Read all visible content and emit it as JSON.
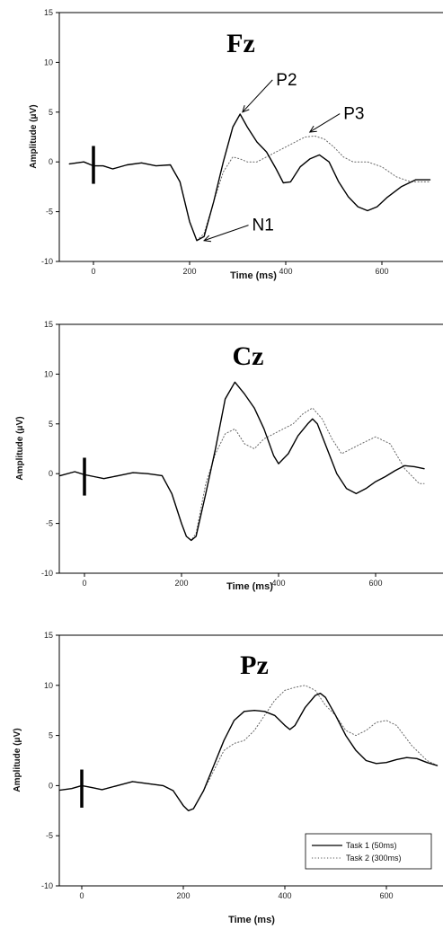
{
  "chart_data": [
    {
      "type": "line",
      "title": "Fz",
      "xlabel": "Time (ms)",
      "ylabel": "Amplitude (μV)",
      "xlim": [
        -50,
        700
      ],
      "ylim": [
        -10,
        15
      ],
      "xticks": [
        0,
        200,
        400,
        600
      ],
      "yticks": [
        -10,
        -5,
        0,
        5,
        10,
        15
      ],
      "stimulus_marker_x": 0,
      "series": [
        {
          "name": "Task 1 (50ms)",
          "style": "solid",
          "points": [
            [
              -50,
              -0.2
            ],
            [
              -20,
              0
            ],
            [
              0,
              -0.4
            ],
            [
              20,
              -0.4
            ],
            [
              40,
              -0.7
            ],
            [
              70,
              -0.3
            ],
            [
              100,
              -0.1
            ],
            [
              130,
              -0.4
            ],
            [
              160,
              -0.3
            ],
            [
              180,
              -2
            ],
            [
              200,
              -6
            ],
            [
              215,
              -7.9
            ],
            [
              230,
              -7.5
            ],
            [
              250,
              -4
            ],
            [
              270,
              0
            ],
            [
              290,
              3.5
            ],
            [
              305,
              4.8
            ],
            [
              320,
              3.5
            ],
            [
              340,
              2
            ],
            [
              360,
              1
            ],
            [
              380,
              -0.7
            ],
            [
              395,
              -2.1
            ],
            [
              410,
              -2
            ],
            [
              430,
              -0.5
            ],
            [
              450,
              0.3
            ],
            [
              470,
              0.7
            ],
            [
              490,
              0
            ],
            [
              510,
              -2
            ],
            [
              530,
              -3.5
            ],
            [
              550,
              -4.5
            ],
            [
              570,
              -4.9
            ],
            [
              590,
              -4.5
            ],
            [
              610,
              -3.6
            ],
            [
              640,
              -2.5
            ],
            [
              670,
              -1.8
            ],
            [
              700,
              -1.8
            ]
          ]
        },
        {
          "name": "Task 2 (300ms)",
          "style": "dotted",
          "points": [
            [
              -50,
              -0.2
            ],
            [
              -20,
              0
            ],
            [
              0,
              -0.4
            ],
            [
              20,
              -0.4
            ],
            [
              40,
              -0.7
            ],
            [
              70,
              -0.3
            ],
            [
              100,
              -0.1
            ],
            [
              130,
              -0.4
            ],
            [
              160,
              -0.3
            ],
            [
              180,
              -2
            ],
            [
              200,
              -6
            ],
            [
              215,
              -7.9
            ],
            [
              230,
              -7.2
            ],
            [
              250,
              -4
            ],
            [
              270,
              -1
            ],
            [
              290,
              0.5
            ],
            [
              305,
              0.3
            ],
            [
              320,
              0
            ],
            [
              340,
              0
            ],
            [
              360,
              0.5
            ],
            [
              380,
              1
            ],
            [
              400,
              1.5
            ],
            [
              420,
              2
            ],
            [
              440,
              2.5
            ],
            [
              460,
              2.6
            ],
            [
              480,
              2.3
            ],
            [
              500,
              1.5
            ],
            [
              520,
              0.5
            ],
            [
              540,
              0
            ],
            [
              570,
              0
            ],
            [
              600,
              -0.5
            ],
            [
              630,
              -1.5
            ],
            [
              660,
              -2
            ],
            [
              700,
              -2
            ]
          ]
        }
      ],
      "annotations": [
        {
          "text": "P2",
          "x": 380,
          "y": 7.7,
          "arrow_to": [
            310,
            5
          ]
        },
        {
          "text": "P3",
          "x": 520,
          "y": 4.3,
          "arrow_to": [
            450,
            3
          ]
        },
        {
          "text": "N1",
          "x": 330,
          "y": -6.9,
          "arrow_to": [
            230,
            -7.9
          ]
        }
      ]
    },
    {
      "type": "line",
      "title": "Cz",
      "xlabel": "Time (ms)",
      "ylabel": "Amplitude (μV)",
      "xlim": [
        -50,
        700
      ],
      "ylim": [
        -10,
        15
      ],
      "xticks": [
        0,
        200,
        400,
        600
      ],
      "yticks": [
        -10,
        -5,
        0,
        5,
        10,
        15
      ],
      "stimulus_marker_x": 0,
      "series": [
        {
          "name": "Task 1 (50ms)",
          "style": "solid",
          "points": [
            [
              -50,
              -0.2
            ],
            [
              -20,
              0.2
            ],
            [
              0,
              -0.1
            ],
            [
              20,
              -0.3
            ],
            [
              40,
              -0.5
            ],
            [
              70,
              -0.2
            ],
            [
              100,
              0.1
            ],
            [
              130,
              0
            ],
            [
              160,
              -0.2
            ],
            [
              180,
              -2
            ],
            [
              200,
              -5
            ],
            [
              210,
              -6.3
            ],
            [
              220,
              -6.7
            ],
            [
              230,
              -6.3
            ],
            [
              250,
              -2
            ],
            [
              270,
              2.5
            ],
            [
              290,
              7.5
            ],
            [
              310,
              9.2
            ],
            [
              330,
              8
            ],
            [
              350,
              6.6
            ],
            [
              370,
              4.5
            ],
            [
              390,
              1.8
            ],
            [
              400,
              1
            ],
            [
              420,
              2
            ],
            [
              440,
              3.8
            ],
            [
              460,
              5
            ],
            [
              470,
              5.5
            ],
            [
              480,
              5
            ],
            [
              500,
              2.5
            ],
            [
              520,
              0
            ],
            [
              540,
              -1.5
            ],
            [
              560,
              -2
            ],
            [
              580,
              -1.5
            ],
            [
              600,
              -0.8
            ],
            [
              620,
              -0.3
            ],
            [
              640,
              0.3
            ],
            [
              660,
              0.8
            ],
            [
              680,
              0.7
            ],
            [
              700,
              0.5
            ]
          ]
        },
        {
          "name": "Task 2 (300ms)",
          "style": "dotted",
          "points": [
            [
              -50,
              -0.2
            ],
            [
              -20,
              0.2
            ],
            [
              0,
              -0.1
            ],
            [
              20,
              -0.3
            ],
            [
              40,
              -0.5
            ],
            [
              70,
              -0.2
            ],
            [
              100,
              0.1
            ],
            [
              130,
              0
            ],
            [
              160,
              -0.2
            ],
            [
              180,
              -2
            ],
            [
              200,
              -5
            ],
            [
              210,
              -6.3
            ],
            [
              220,
              -6.7
            ],
            [
              230,
              -6
            ],
            [
              250,
              -1
            ],
            [
              270,
              2
            ],
            [
              290,
              4
            ],
            [
              310,
              4.5
            ],
            [
              330,
              3
            ],
            [
              350,
              2.5
            ],
            [
              370,
              3.5
            ],
            [
              390,
              4
            ],
            [
              410,
              4.5
            ],
            [
              430,
              5
            ],
            [
              450,
              6
            ],
            [
              470,
              6.6
            ],
            [
              490,
              5.5
            ],
            [
              510,
              3.5
            ],
            [
              530,
              2
            ],
            [
              550,
              2.5
            ],
            [
              570,
              3
            ],
            [
              600,
              3.7
            ],
            [
              630,
              3
            ],
            [
              660,
              0.5
            ],
            [
              690,
              -1
            ],
            [
              700,
              -1
            ]
          ]
        }
      ],
      "annotations": []
    },
    {
      "type": "line",
      "title": "Pz",
      "xlabel": "Time (ms)",
      "ylabel": "Amplitude (μV)",
      "xlim": [
        -50,
        700
      ],
      "ylim": [
        -10,
        15
      ],
      "xticks": [
        0,
        200,
        400,
        600
      ],
      "yticks": [
        -10,
        -5,
        0,
        5,
        10,
        15
      ],
      "stimulus_marker_x": 0,
      "series": [
        {
          "name": "Task 1 (50ms)",
          "style": "solid",
          "points": [
            [
              -50,
              -0.5
            ],
            [
              -20,
              -0.3
            ],
            [
              0,
              0
            ],
            [
              20,
              -0.2
            ],
            [
              40,
              -0.4
            ],
            [
              70,
              0
            ],
            [
              100,
              0.4
            ],
            [
              130,
              0.2
            ],
            [
              160,
              0
            ],
            [
              180,
              -0.5
            ],
            [
              200,
              -2
            ],
            [
              210,
              -2.5
            ],
            [
              220,
              -2.3
            ],
            [
              240,
              -0.5
            ],
            [
              260,
              2
            ],
            [
              280,
              4.5
            ],
            [
              300,
              6.5
            ],
            [
              320,
              7.4
            ],
            [
              340,
              7.5
            ],
            [
              360,
              7.4
            ],
            [
              380,
              7
            ],
            [
              400,
              6
            ],
            [
              410,
              5.6
            ],
            [
              420,
              6
            ],
            [
              440,
              7.8
            ],
            [
              460,
              9
            ],
            [
              470,
              9.2
            ],
            [
              480,
              8.8
            ],
            [
              500,
              7
            ],
            [
              520,
              5
            ],
            [
              540,
              3.5
            ],
            [
              560,
              2.5
            ],
            [
              580,
              2.2
            ],
            [
              600,
              2.3
            ],
            [
              620,
              2.6
            ],
            [
              640,
              2.8
            ],
            [
              660,
              2.7
            ],
            [
              680,
              2.3
            ],
            [
              700,
              2
            ]
          ]
        },
        {
          "name": "Task 2 (300ms)",
          "style": "dotted",
          "points": [
            [
              -50,
              -0.5
            ],
            [
              -20,
              -0.3
            ],
            [
              0,
              0
            ],
            [
              20,
              -0.2
            ],
            [
              40,
              -0.4
            ],
            [
              70,
              0
            ],
            [
              100,
              0.4
            ],
            [
              130,
              0.2
            ],
            [
              160,
              0
            ],
            [
              180,
              -0.5
            ],
            [
              200,
              -2
            ],
            [
              210,
              -2.5
            ],
            [
              220,
              -2.3
            ],
            [
              240,
              -0.5
            ],
            [
              260,
              1.5
            ],
            [
              280,
              3.5
            ],
            [
              300,
              4.2
            ],
            [
              320,
              4.5
            ],
            [
              340,
              5.5
            ],
            [
              360,
              7
            ],
            [
              380,
              8.5
            ],
            [
              400,
              9.5
            ],
            [
              420,
              9.8
            ],
            [
              440,
              10
            ],
            [
              460,
              9.5
            ],
            [
              480,
              8
            ],
            [
              500,
              7
            ],
            [
              520,
              5.5
            ],
            [
              540,
              5
            ],
            [
              560,
              5.5
            ],
            [
              580,
              6.3
            ],
            [
              600,
              6.5
            ],
            [
              620,
              6
            ],
            [
              650,
              4
            ],
            [
              680,
              2.5
            ],
            [
              700,
              2
            ]
          ]
        }
      ],
      "annotations": [],
      "legend": {
        "position": "bottom-right",
        "entries": [
          "Task 1 (50ms)",
          "Task 2 (300ms)"
        ]
      }
    }
  ]
}
